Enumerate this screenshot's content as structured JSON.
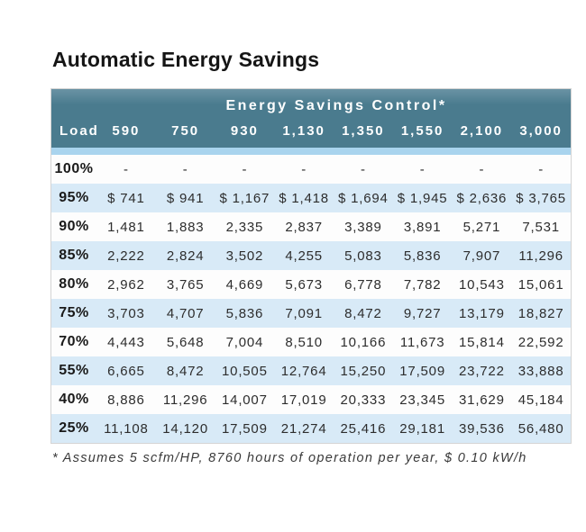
{
  "chart_data": {
    "type": "table",
    "title": "Automatic Energy Savings",
    "group_header": "Energy Savings Control*",
    "columns": [
      "Load",
      "590",
      "750",
      "930",
      "1,130",
      "1,350",
      "1,550",
      "2,100",
      "3,000"
    ],
    "rows": [
      {
        "load": "100%",
        "values": [
          "-",
          "-",
          "-",
          "-",
          "-",
          "-",
          "-",
          "-"
        ]
      },
      {
        "load": "95%",
        "values": [
          "$ 741",
          "$ 941",
          "$ 1,167",
          "$ 1,418",
          "$ 1,694",
          "$ 1,945",
          "$ 2,636",
          "$ 3,765"
        ]
      },
      {
        "load": "90%",
        "values": [
          "1,481",
          "1,883",
          "2,335",
          "2,837",
          "3,389",
          "3,891",
          "5,271",
          "7,531"
        ]
      },
      {
        "load": "85%",
        "values": [
          "2,222",
          "2,824",
          "3,502",
          "4,255",
          "5,083",
          "5,836",
          "7,907",
          "11,296"
        ]
      },
      {
        "load": "80%",
        "values": [
          "2,962",
          "3,765",
          "4,669",
          "5,673",
          "6,778",
          "7,782",
          "10,543",
          "15,061"
        ]
      },
      {
        "load": "75%",
        "values": [
          "3,703",
          "4,707",
          "5,836",
          "7,091",
          "8,472",
          "9,727",
          "13,179",
          "18,827"
        ]
      },
      {
        "load": "70%",
        "values": [
          "4,443",
          "5,648",
          "7,004",
          "8,510",
          "10,166",
          "11,673",
          "15,814",
          "22,592"
        ]
      },
      {
        "load": "55%",
        "values": [
          "6,665",
          "8,472",
          "10,505",
          "12,764",
          "15,250",
          "17,509",
          "23,722",
          "33,888"
        ]
      },
      {
        "load": "40%",
        "values": [
          "8,886",
          "11,296",
          "14,007",
          "17,019",
          "20,333",
          "23,345",
          "31,629",
          "45,184"
        ]
      },
      {
        "load": "25%",
        "values": [
          "11,108",
          "14,120",
          "17,509",
          "21,274",
          "25,416",
          "29,181",
          "39,536",
          "56,480"
        ]
      }
    ],
    "footnote": "* Assumes 5 scfm/HP, 8760 hours of operation per year, $ 0.10 kW/h",
    "layout": {
      "grid": "off",
      "legend": "none",
      "row_striping": "alternating white and light blue, starting white at 100% row"
    }
  },
  "colors": {
    "header_teal": "#4a7b8e",
    "header_teal_light": "#6a93a4",
    "stripe_blue": "#a9d4ee",
    "row_alt_blue": "#d8eaf7",
    "row_white": "#fdfdfd",
    "header_text": "#ffffff",
    "body_text": "#2d2d2d"
  }
}
